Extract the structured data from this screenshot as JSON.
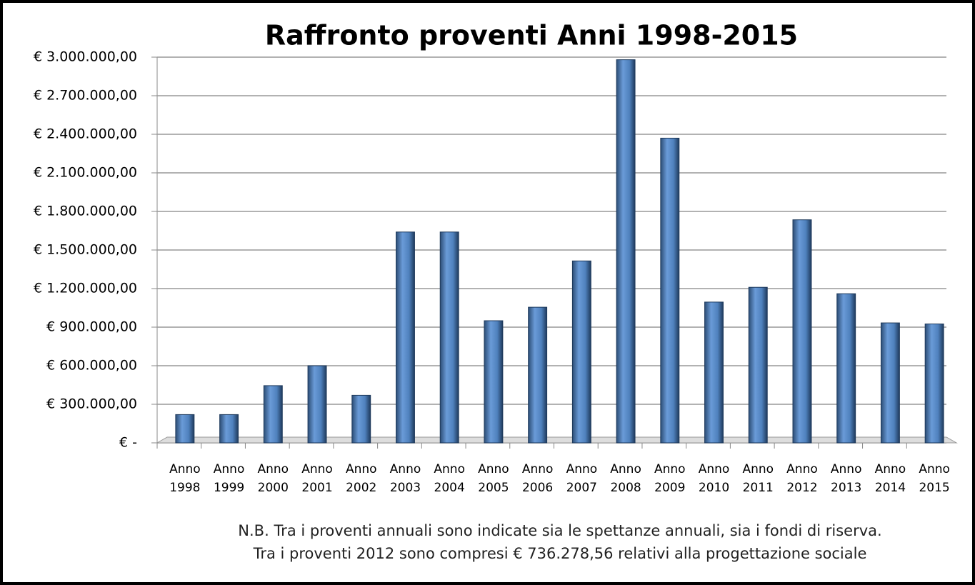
{
  "chart_data": {
    "type": "bar",
    "title": "Raffronto proventi Anni 1998-2015",
    "categories": [
      "Anno 1998",
      "Anno 1999",
      "Anno 2000",
      "Anno 2001",
      "Anno 2002",
      "Anno 2003",
      "Anno 2004",
      "Anno 2005",
      "Anno 2006",
      "Anno 2007",
      "Anno 2008",
      "Anno 2009",
      "Anno 2010",
      "Anno 2011",
      "Anno 2012",
      "Anno 2013",
      "Anno 2014",
      "Anno 2015"
    ],
    "values": [
      220000,
      220000,
      445000,
      600000,
      370000,
      1640000,
      1640000,
      950000,
      1055000,
      1415000,
      2980000,
      2370000,
      1095000,
      1210000,
      1735000,
      1160000,
      933000,
      925000
    ],
    "color": "#4f81bd",
    "ylim": [
      0,
      3000000
    ],
    "yticks": [
      {
        "value": 0,
        "label": "€ -"
      },
      {
        "value": 300000,
        "label": "€ 300.000,00"
      },
      {
        "value": 600000,
        "label": "€ 600.000,00"
      },
      {
        "value": 900000,
        "label": "€ 900.000,00"
      },
      {
        "value": 1200000,
        "label": "€ 1.200.000,00"
      },
      {
        "value": 1500000,
        "label": "€ 1.500.000,00"
      },
      {
        "value": 1800000,
        "label": "€ 1.800.000,00"
      },
      {
        "value": 2100000,
        "label": "€ 2.100.000,00"
      },
      {
        "value": 2400000,
        "label": "€ 2.400.000,00"
      },
      {
        "value": 2700000,
        "label": "€ 2.700.000,00"
      },
      {
        "value": 3000000,
        "label": "€ 3.000.000,00"
      }
    ],
    "grid": true,
    "notes": [
      "N.B. Tra i proventi annuali sono indicate sia le spettanze annuali, sia i fondi di riserva.",
      "Tra i proventi 2012 sono compresi € 736.278,56 relativi alla progettazione sociale"
    ]
  }
}
